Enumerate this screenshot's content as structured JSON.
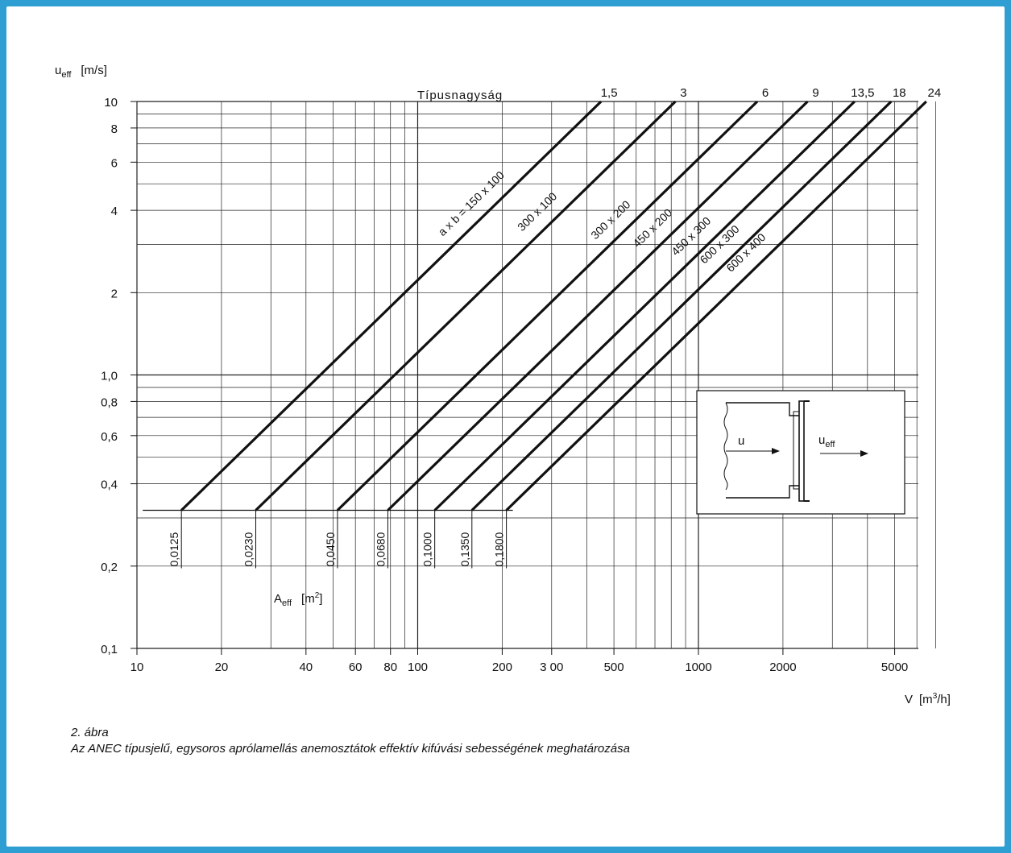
{
  "chart_data": {
    "type": "line",
    "x_scale": "log",
    "y_scale": "log",
    "xlim": [
      10,
      7000
    ],
    "ylim": [
      0.1,
      10
    ],
    "grid": true,
    "ylabel_main": "u",
    "ylabel_sub": "eff",
    "ylabel_unit": "[m/s]",
    "xlabel_main": "V",
    "xlabel_unit_pre": "[m",
    "xlabel_unit_sup": "3",
    "xlabel_unit_post": "/h]",
    "area_label_main": "A",
    "area_label_sub": "eff",
    "area_label_unit_pre": "[m",
    "area_label_unit_sup": "2",
    "area_label_unit_post": "]",
    "size_header": "Típusnagyság",
    "x_ticks": [
      {
        "v": 10,
        "label": "10"
      },
      {
        "v": 20,
        "label": "20"
      },
      {
        "v": 40,
        "label": "40"
      },
      {
        "v": 60,
        "label": "60"
      },
      {
        "v": 80,
        "label": "80"
      },
      {
        "v": 100,
        "label": "100"
      },
      {
        "v": 200,
        "label": "200"
      },
      {
        "v": 300,
        "label": "3 00"
      },
      {
        "v": 500,
        "label": "500"
      },
      {
        "v": 1000,
        "label": "1000"
      },
      {
        "v": 2000,
        "label": "2000"
      },
      {
        "v": 5000,
        "label": "5000"
      }
    ],
    "y_ticks": [
      {
        "v": 0.1,
        "label": "0,1"
      },
      {
        "v": 0.2,
        "label": "0,2"
      },
      {
        "v": 0.4,
        "label": "0,4"
      },
      {
        "v": 0.6,
        "label": "0,6"
      },
      {
        "v": 0.8,
        "label": "0,8"
      },
      {
        "v": 1.0,
        "label": "1,0"
      },
      {
        "v": 2,
        "label": "2"
      },
      {
        "v": 4,
        "label": "4"
      },
      {
        "v": 6,
        "label": "6"
      },
      {
        "v": 8,
        "label": "8"
      },
      {
        "v": 10,
        "label": "10"
      }
    ],
    "series": [
      {
        "size": "1,5",
        "dims": "a x b = 150 x 100",
        "area": "0,0125",
        "x": [
          14.4,
          450
        ],
        "y": [
          0.32,
          10
        ]
      },
      {
        "size": "3",
        "dims": "300 x 100",
        "area": "0,0230",
        "x": [
          26.5,
          828
        ],
        "y": [
          0.32,
          10
        ]
      },
      {
        "size": "6",
        "dims": "300 x 200",
        "area": "0,0450",
        "x": [
          51.8,
          1620
        ],
        "y": [
          0.32,
          10
        ]
      },
      {
        "size": "9",
        "dims": "450 x 200",
        "area": "0,0680",
        "x": [
          78.3,
          2448
        ],
        "y": [
          0.32,
          10
        ]
      },
      {
        "size": "13,5",
        "dims": "450 x 300",
        "area": "0,1000",
        "x": [
          115,
          3600
        ],
        "y": [
          0.32,
          10
        ]
      },
      {
        "size": "18",
        "dims": "600 x 300",
        "area": "0,1350",
        "x": [
          156,
          4860
        ],
        "y": [
          0.32,
          10
        ]
      },
      {
        "size": "24",
        "dims": "600 x 400",
        "area": "0,1800",
        "x": [
          207,
          6480
        ],
        "y": [
          0.32,
          10
        ]
      }
    ],
    "inset": {
      "u_label": "u",
      "ueff_main": "u",
      "ueff_sub": "eff"
    }
  },
  "caption": {
    "line1": "2. ábra",
    "line2": "Az ANEC típusjelű, egysoros aprólamellás anemosztátok effektív kifúvási sebességének meghatározása"
  }
}
